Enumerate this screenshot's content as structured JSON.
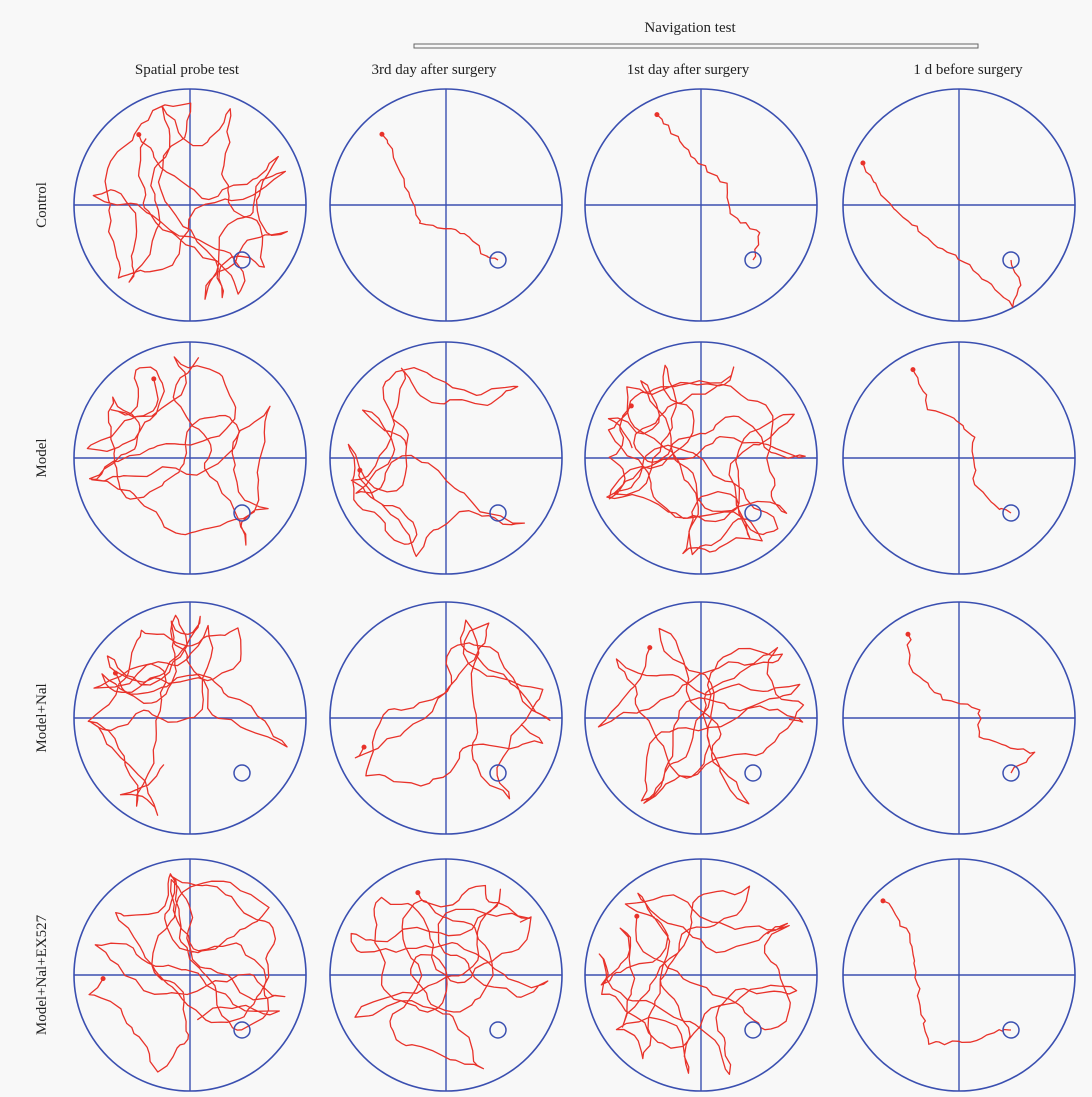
{
  "header": {
    "group_label": "Navigation test"
  },
  "columns": [
    {
      "label": "Spatial probe test"
    },
    {
      "label": "3rd day after surgery"
    },
    {
      "label": "1st day after surgery"
    },
    {
      "label": "1 d before surgery"
    }
  ],
  "rows": [
    {
      "label": "Control"
    },
    {
      "label": "Model"
    },
    {
      "label": "Model+Nal"
    },
    {
      "label": "Model+Nal+EX527"
    }
  ],
  "colors": {
    "pool": "#3a4fb0",
    "path": "#e8322a",
    "background": "#f8f8f8"
  }
}
